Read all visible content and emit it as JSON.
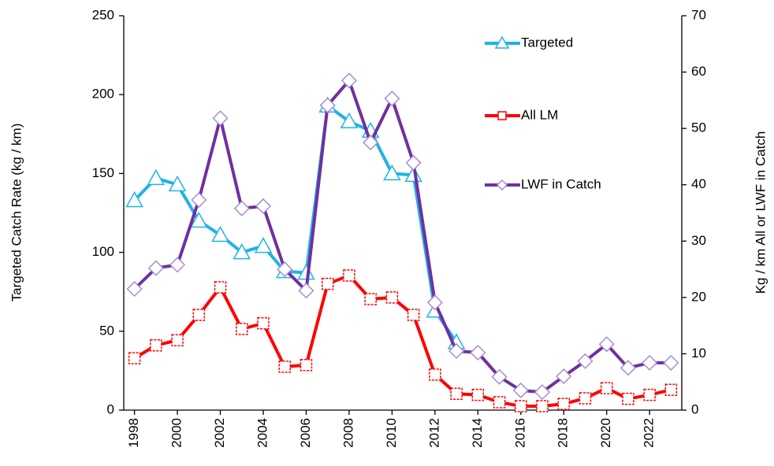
{
  "chart_data": {
    "type": "line",
    "y_label": "Targeted Catch Rate  (kg / km)",
    "y2_label": "Kg / km  All or LWF in Catch",
    "x": [
      1998,
      1999,
      2000,
      2001,
      2002,
      2003,
      2004,
      2005,
      2006,
      2007,
      2008,
      2009,
      2010,
      2011,
      2012,
      2013,
      2014,
      2015,
      2016,
      2017,
      2018,
      2019,
      2020,
      2021,
      2022,
      2023
    ],
    "xlim": [
      1997.5,
      2023.5
    ],
    "xticks": [
      1998,
      2000,
      2002,
      2004,
      2006,
      2008,
      2010,
      2012,
      2014,
      2016,
      2018,
      2020,
      2022
    ],
    "ylim": [
      0,
      250
    ],
    "yticks": [
      0,
      50,
      100,
      150,
      200,
      250
    ],
    "y2lim": [
      0,
      70
    ],
    "y2ticks": [
      0,
      10,
      20,
      30,
      40,
      50,
      60,
      70
    ],
    "legend": "right",
    "series": [
      {
        "name": "Targeted",
        "color": "#1fb3e6",
        "marker": "triangle",
        "axis": "y",
        "values": [
          133,
          147,
          143,
          120,
          111,
          100,
          104,
          88,
          87,
          193,
          183,
          177,
          150,
          149,
          63,
          43,
          null,
          null,
          null,
          null,
          null,
          null,
          null,
          null,
          null,
          null
        ]
      },
      {
        "name": "All LM",
        "color": "#ff0000",
        "marker": "square",
        "axis": "y2",
        "values": [
          9.2,
          11.5,
          12.4,
          16.9,
          21.8,
          14.4,
          15.4,
          7.7,
          8.0,
          22.4,
          23.9,
          19.7,
          20.0,
          16.9,
          6.3,
          2.9,
          2.7,
          1.4,
          0.7,
          0.7,
          1.1,
          2.1,
          3.9,
          2.0,
          2.7,
          3.6
        ]
      },
      {
        "name": "LWF in Catch",
        "color": "#7030a0",
        "marker": "diamond",
        "axis": "y2",
        "values": [
          21.5,
          25.2,
          25.8,
          37.3,
          51.8,
          35.8,
          36.2,
          25.0,
          21.2,
          54.1,
          58.5,
          47.5,
          55.3,
          43.9,
          19.1,
          10.5,
          10.2,
          5.9,
          3.5,
          3.2,
          6.0,
          8.7,
          11.7,
          7.5,
          8.4,
          8.4
        ]
      }
    ]
  }
}
